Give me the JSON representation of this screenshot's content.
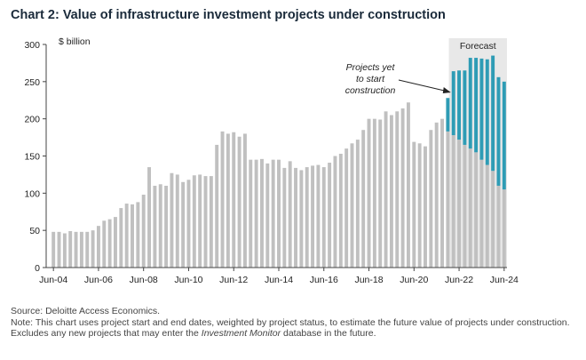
{
  "title": "Chart 2: Value of infrastructure investment projects under construction",
  "source": "Source: Deloitte Access Economics.",
  "note_prefix": "Note: This chart uses project start and end dates, weighted by project status, to estimate the future value of projects under construction. Excludes any new projects that may enter the ",
  "note_italic": "Investment Monitor",
  "note_suffix": " database in the future.",
  "colors": {
    "under_construction": "#c0c0c0",
    "yet_to_start": "#2e9cb5",
    "forecast_shade": "#e8e8e8",
    "text": "#222222"
  },
  "chart_data": {
    "type": "bar",
    "stacked": true,
    "title": "Chart 2: Value of infrastructure investment projects under construction",
    "ylabel": "$ billion",
    "ylim": [
      0,
      300
    ],
    "yticks": [
      0,
      50,
      100,
      150,
      200,
      250,
      300
    ],
    "xticks": [
      "Jun-04",
      "Jun-06",
      "Jun-08",
      "Jun-10",
      "Jun-12",
      "Jun-14",
      "Jun-16",
      "Jun-18",
      "Jun-20",
      "Jun-22",
      "Jun-24"
    ],
    "frequency": "quarterly",
    "first_period": "Jun-04",
    "forecast_label": "Forecast",
    "forecast_start_index": 71,
    "annotation": [
      "Projects yet",
      "to start",
      "construction"
    ],
    "series": [
      {
        "name": "Under construction",
        "color": "#c0c0c0",
        "values": [
          48,
          48,
          46,
          49,
          48,
          48,
          48,
          50,
          56,
          63,
          65,
          68,
          80,
          86,
          85,
          88,
          98,
          135,
          110,
          112,
          110,
          127,
          125,
          115,
          118,
          124,
          125,
          123,
          123,
          165,
          183,
          180,
          182,
          176,
          180,
          145,
          145,
          146,
          140,
          145,
          145,
          134,
          143,
          134,
          131,
          135,
          137,
          138,
          135,
          141,
          150,
          153,
          160,
          167,
          172,
          185,
          200,
          200,
          199,
          210,
          205,
          210,
          214,
          222,
          169,
          167,
          163,
          185,
          195,
          200,
          183,
          178,
          172,
          165,
          160,
          155,
          145,
          138,
          130,
          110,
          105
        ]
      },
      {
        "name": "Projects yet to start construction",
        "color": "#2e9cb5",
        "values": [
          0,
          0,
          0,
          0,
          0,
          0,
          0,
          0,
          0,
          0,
          0,
          0,
          0,
          0,
          0,
          0,
          0,
          0,
          0,
          0,
          0,
          0,
          0,
          0,
          0,
          0,
          0,
          0,
          0,
          0,
          0,
          0,
          0,
          0,
          0,
          0,
          0,
          0,
          0,
          0,
          0,
          0,
          0,
          0,
          0,
          0,
          0,
          0,
          0,
          0,
          0,
          0,
          0,
          0,
          0,
          0,
          0,
          0,
          0,
          0,
          0,
          0,
          0,
          0,
          0,
          0,
          0,
          0,
          0,
          0,
          45,
          86,
          93,
          100,
          122,
          127,
          136,
          142,
          155,
          146,
          145
        ]
      }
    ]
  }
}
